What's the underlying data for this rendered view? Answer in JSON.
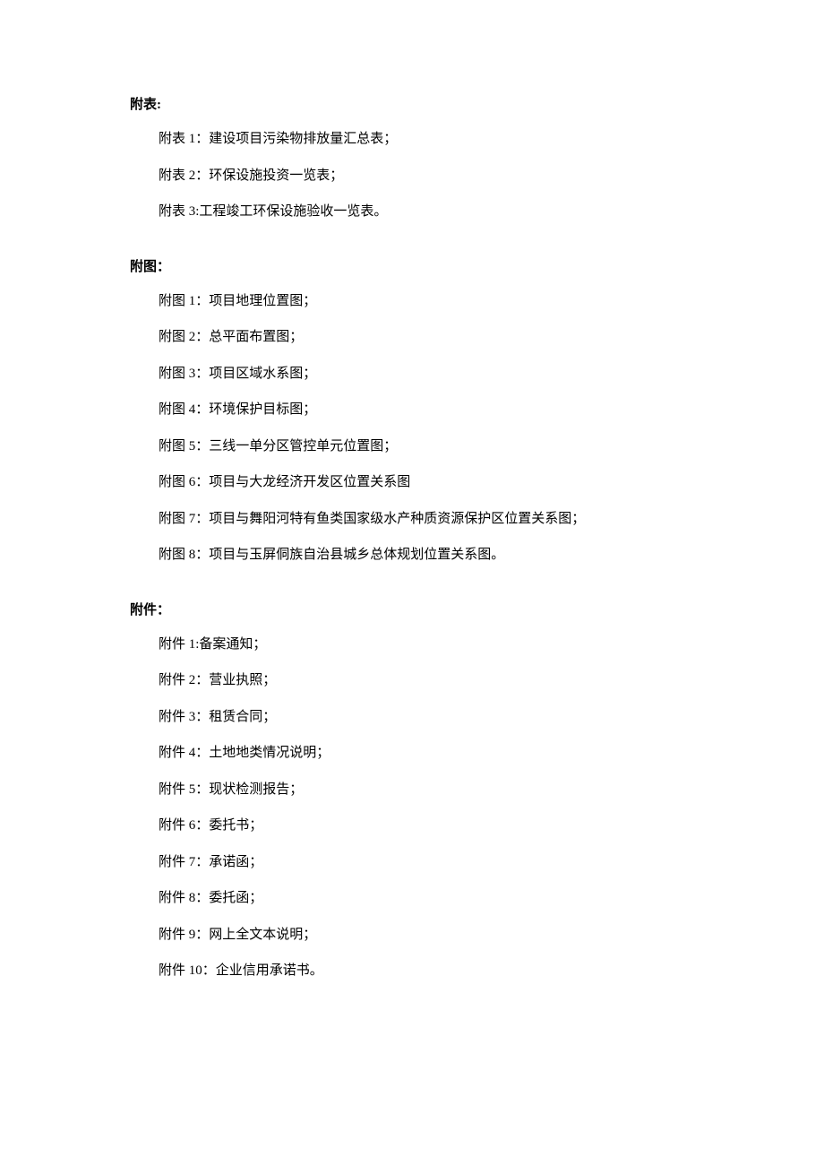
{
  "sections": {
    "tables": {
      "header": "附表:",
      "items": [
        "附表 1：建设项目污染物排放量汇总表；",
        "附表 2：环保设施投资一览表；",
        "附表 3:工程竣工环保设施验收一览表。"
      ]
    },
    "figures": {
      "header": "附图：",
      "items": [
        "附图 1：项目地理位置图；",
        "附图 2：总平面布置图；",
        "附图 3：项目区域水系图；",
        "附图 4：环境保护目标图；",
        "附图 5：三线一单分区管控单元位置图；",
        "附图 6：项目与大龙经济开发区位置关系图",
        "附图 7：项目与舞阳河特有鱼类国家级水产种质资源保护区位置关系图；",
        "附图 8：项目与玉屏侗族自治县城乡总体规划位置关系图。"
      ]
    },
    "attachments": {
      "header": "附件：",
      "items": [
        "附件 1:备案通知；",
        "附件 2：营业执照；",
        "附件 3：租赁合同；",
        "附件 4：土地地类情况说明；",
        "附件 5：现状检测报告；",
        "附件 6：委托书；",
        "附件 7：承诺函；",
        "附件 8：委托函；",
        "附件 9：网上全文本说明；",
        "附件 10：企业信用承诺书。"
      ]
    }
  }
}
